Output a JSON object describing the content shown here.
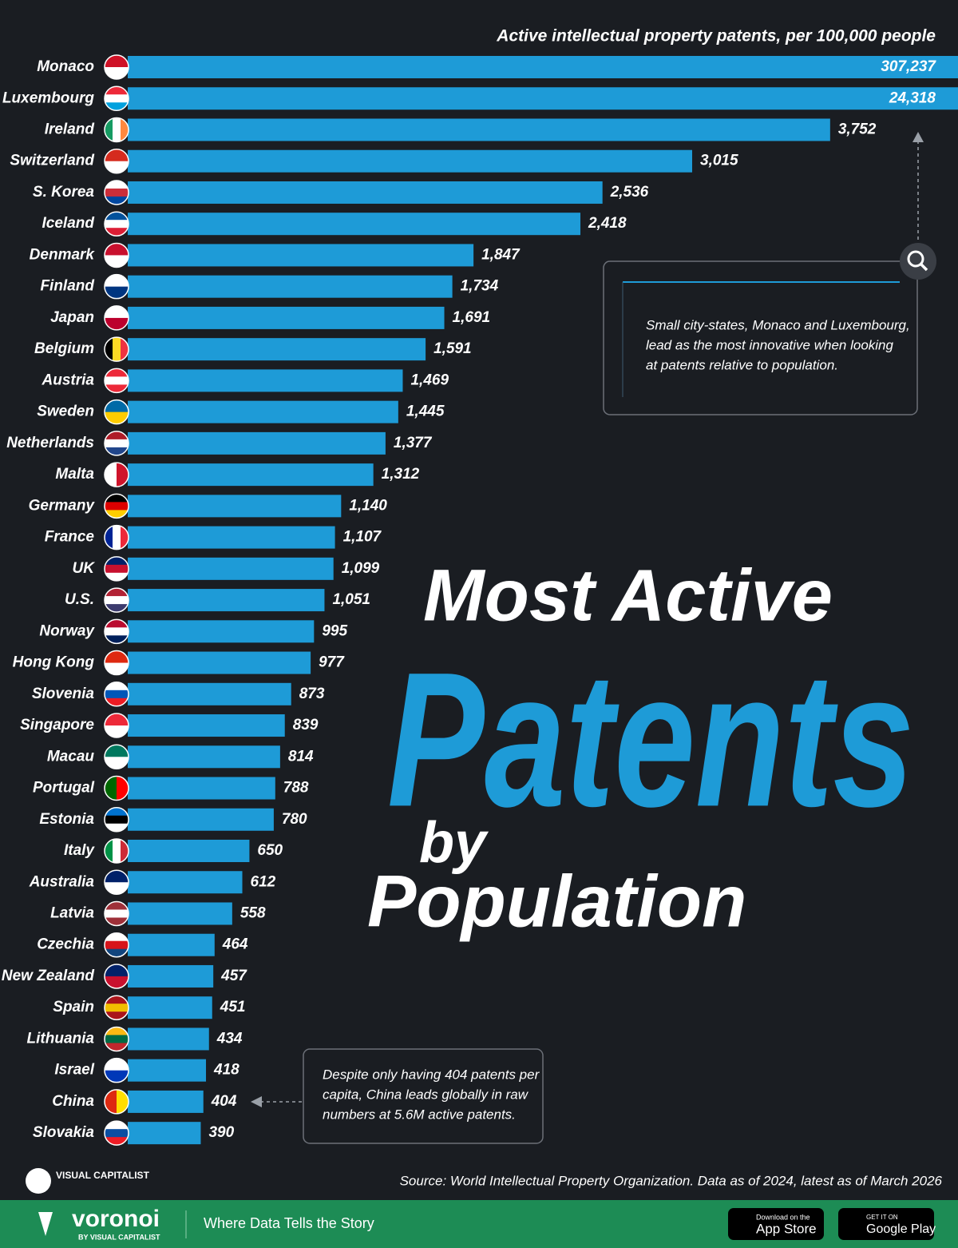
{
  "chart_data": {
    "type": "bar",
    "orientation": "horizontal",
    "title": [
      "Most Active",
      "Patents",
      "by",
      "Population"
    ],
    "axis_label": "Active intellectual property patents, per 100,000 people",
    "categories": [
      "Monaco",
      "Luxembourg",
      "Ireland",
      "Switzerland",
      "S. Korea",
      "Iceland",
      "Denmark",
      "Finland",
      "Japan",
      "Belgium",
      "Austria",
      "Sweden",
      "Netherlands",
      "Malta",
      "Germany",
      "France",
      "UK",
      "U.S.",
      "Norway",
      "Hong Kong",
      "Slovenia",
      "Singapore",
      "Macau",
      "Portugal",
      "Estonia",
      "Italy",
      "Australia",
      "Latvia",
      "Czechia",
      "New Zealand",
      "Spain",
      "Lithuania",
      "Israel",
      "China",
      "Slovakia"
    ],
    "values": [
      307237,
      24318,
      3752,
      3015,
      2536,
      2418,
      1847,
      1734,
      1691,
      1591,
      1469,
      1445,
      1377,
      1312,
      1140,
      1107,
      1099,
      1051,
      995,
      977,
      873,
      839,
      814,
      788,
      780,
      650,
      612,
      558,
      464,
      457,
      451,
      434,
      418,
      404,
      390
    ],
    "value_labels": [
      "307,237",
      "24,318",
      "3,752",
      "3,015",
      "2,536",
      "2,418",
      "1,847",
      "1,734",
      "1,691",
      "1,591",
      "1,469",
      "1,445",
      "1,377",
      "1,312",
      "1,140",
      "1,107",
      "1,099",
      "1,051",
      "995",
      "977",
      "873",
      "839",
      "814",
      "788",
      "780",
      "650",
      "612",
      "558",
      "464",
      "457",
      "451",
      "434",
      "418",
      "404",
      "390"
    ],
    "color": "#1e9bd7",
    "xlim": [
      0,
      4435
    ],
    "annotations": [
      {
        "lines": [
          "Small city-states, Monaco and Luxembourg,",
          "lead as the most innovative when looking",
          "at patents relative to population."
        ]
      },
      {
        "lines": [
          "Despite only having 404 patents per",
          "capita, China leads globally in raw",
          "numbers at 5.6M active patents."
        ]
      }
    ],
    "source": "Source: World Intellectual Property Organization. Data as of 2024, latest as of March 2026"
  },
  "footer": {
    "brand": "VISUAL CAPITALIST",
    "logo": "voronoi",
    "logo_sub": "BY VISUAL CAPITALIST",
    "tagline": "Where Data Tells the Story",
    "app_store": [
      "Download on the",
      "App Store"
    ],
    "google_play": [
      "GET IT ON",
      "Google Play"
    ]
  }
}
